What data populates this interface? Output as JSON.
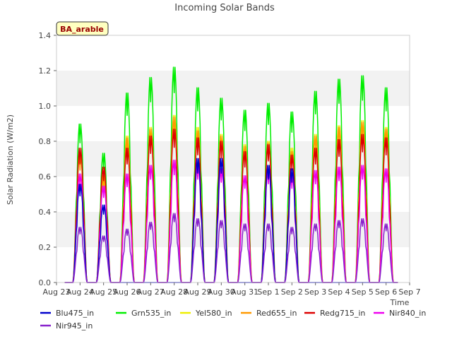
{
  "chart_data": {
    "type": "line",
    "title": "Incoming Solar Bands",
    "ylabel": "Solar Radiation (W/m2)",
    "xlabel": "Time",
    "ylim": [
      0,
      1.4
    ],
    "yticks": [
      "0.0",
      "0.2",
      "0.4",
      "0.6",
      "0.8",
      "1.0",
      "1.2",
      "1.4"
    ],
    "xticks": [
      "Aug 23",
      "Aug 24",
      "Aug 25",
      "Aug 26",
      "Aug 27",
      "Aug 28",
      "Aug 29",
      "Aug 30",
      "Aug 31",
      "Sep 1",
      "Sep 2",
      "Sep 3",
      "Sep 4",
      "Sep 5",
      "Sep 6",
      "Sep 7"
    ],
    "grid": "horizontal bands",
    "site_label": "BA_arable",
    "legend_position": "bottom",
    "days": [
      "Aug 24",
      "Aug 25",
      "Aug 26",
      "Aug 27",
      "Aug 28",
      "Aug 29",
      "Aug 30",
      "Aug 31",
      "Sep 1",
      "Sep 2",
      "Sep 3",
      "Sep 4",
      "Sep 5",
      "Sep 6"
    ],
    "series": [
      {
        "name": "Blu475_in",
        "color": "#0000cc",
        "daily_peaks": [
          0.57,
          0.45,
          0.0,
          0.0,
          0.0,
          0.72,
          0.72,
          0.0,
          0.68,
          0.66,
          0.0,
          0.0,
          0.0,
          0.0
        ]
      },
      {
        "name": "Grn535_in",
        "color": "#00ee00",
        "daily_peaks": [
          0.92,
          0.75,
          1.1,
          1.19,
          1.25,
          1.13,
          1.07,
          1.0,
          1.04,
          0.99,
          1.11,
          1.18,
          1.2,
          1.13
        ]
      },
      {
        "name": "Yel580_in",
        "color": "#eeee00",
        "daily_peaks": [
          0.76,
          0.6,
          0.85,
          0.9,
          0.97,
          0.9,
          0.86,
          0.8,
          0.82,
          0.78,
          0.86,
          0.91,
          0.94,
          0.9
        ]
      },
      {
        "name": "Red655_in",
        "color": "#ff9900",
        "daily_peaks": [
          0.74,
          0.62,
          0.84,
          0.89,
          0.96,
          0.88,
          0.85,
          0.79,
          0.81,
          0.76,
          0.85,
          0.9,
          0.93,
          0.89
        ]
      },
      {
        "name": "Redg715_in",
        "color": "#dd0000",
        "daily_peaks": [
          0.78,
          0.67,
          0.78,
          0.85,
          0.89,
          0.84,
          0.82,
          0.76,
          0.8,
          0.74,
          0.78,
          0.83,
          0.86,
          0.84
        ]
      },
      {
        "name": "Nir840_in",
        "color": "#ee00ee",
        "daily_peaks": [
          0.63,
          0.56,
          0.63,
          0.68,
          0.71,
          0.68,
          0.66,
          0.62,
          0.65,
          0.62,
          0.65,
          0.67,
          0.68,
          0.66
        ]
      },
      {
        "name": "Nir945_in",
        "color": "#8822cc",
        "daily_peaks": [
          0.32,
          0.27,
          0.31,
          0.35,
          0.4,
          0.37,
          0.36,
          0.34,
          0.34,
          0.32,
          0.34,
          0.36,
          0.37,
          0.34
        ]
      }
    ]
  }
}
